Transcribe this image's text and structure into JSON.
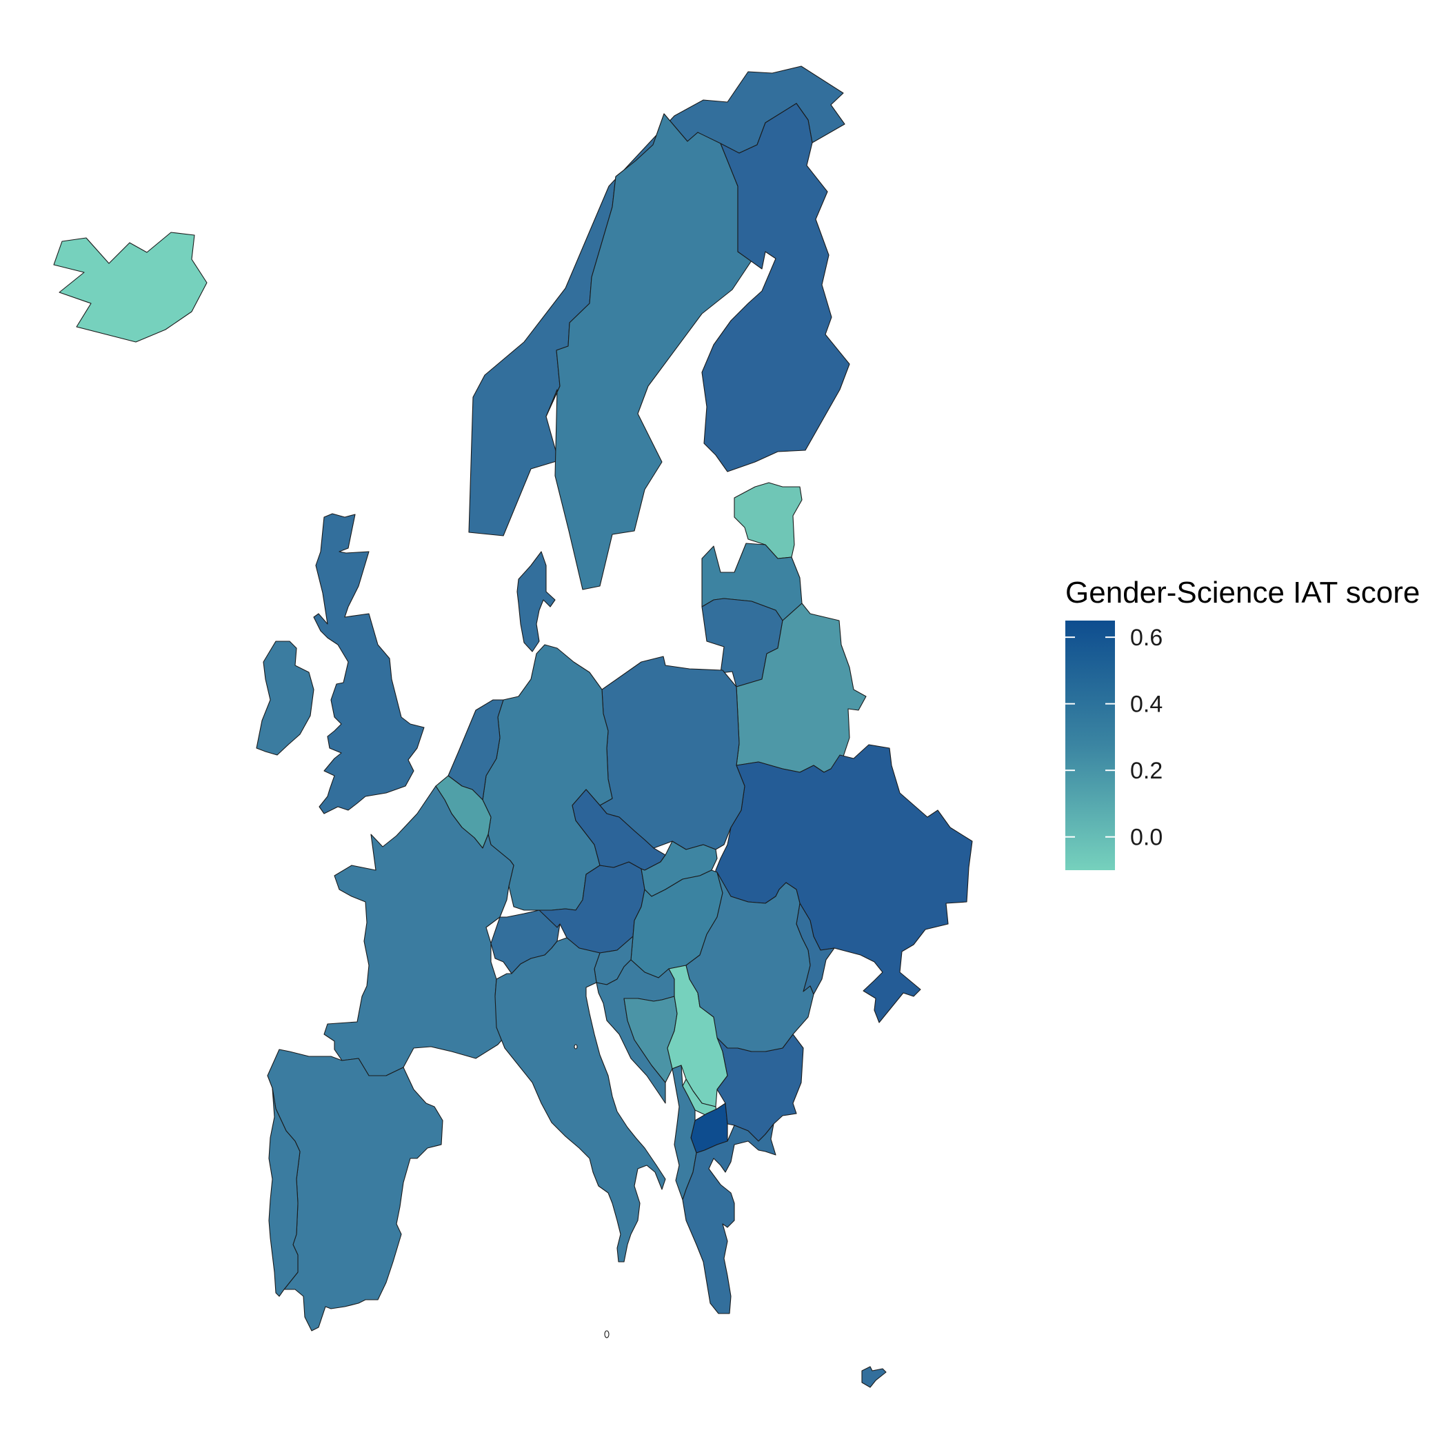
{
  "legend": {
    "title": "Gender-Science IAT score",
    "min": -0.1,
    "max": 0.65,
    "ticks": [
      {
        "value": 0.6,
        "label": "0.6"
      },
      {
        "value": 0.4,
        "label": "0.4"
      },
      {
        "value": 0.2,
        "label": "0.2"
      },
      {
        "value": 0.0,
        "label": "0.0"
      }
    ],
    "color_low": "#76d1bd",
    "color_high": "#0e4d8f"
  },
  "map": {
    "region": "Europe",
    "colors": {
      "iceland": "#76d1bd",
      "estonia": "#6fc6b6",
      "belgium": "#50a0a8",
      "belarus": "#4e98a7",
      "bosnia": "#4b94a6",
      "hungary": "#3b83a1",
      "serbia": "#76d1bd",
      "macedonia": "#0e4d8f",
      "latvia": "#3d83a1",
      "slovakia": "#3e85a2",
      "sweden": "#3b7fa0",
      "germany": "#3b7fa0",
      "france": "#3b7ca0",
      "spain": "#3b7ca0",
      "italy": "#3b7ca0",
      "romania": "#3b7ca0",
      "ireland": "#3b7ca0",
      "croatia": "#3b7ca0",
      "slovenia": "#3b7ca0",
      "albania": "#3b7ca0",
      "norway": "#336f9c",
      "uk": "#336f9c",
      "poland": "#336f9c",
      "netherlands": "#336f9c",
      "switzerland": "#336f9c",
      "denmark": "#336f9c",
      "lithuania": "#336f9c",
      "greece": "#336f9c",
      "cyprus": "#336f9c",
      "moldova": "#336f9c",
      "finland": "#2c6499",
      "czechia": "#2c6499",
      "austria": "#2c6499",
      "bulgaria": "#2c6499",
      "ukraine": "#245c96"
    }
  }
}
